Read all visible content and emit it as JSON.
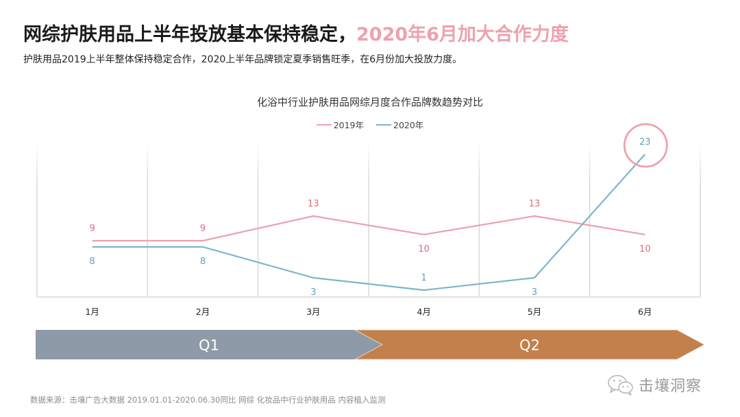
{
  "header": {
    "title_main": "网综护肤用品上半年投放基本保持稳定，",
    "title_accent": "2020年6月加大合作力度",
    "subtitle": "护肤用品2019上半年整体保持稳定合作，2020上半年品牌锁定夏季销售旺季，在6月份加大投放力度。"
  },
  "colors": {
    "series_2019": "#eda1ae",
    "series_2019_label": "#e06a7d",
    "series_2020": "#7ab6cc",
    "series_2020_label": "#5ea3bd",
    "highlight_circle": "#eda1ae",
    "q1": "#8e9aa8",
    "q2": "#c4804a",
    "accent": "#eda1ae"
  },
  "chart_data": {
    "type": "line",
    "title": "化浴中行业护肤用品网综月度合作品牌数趋势对比",
    "categories": [
      "1月",
      "2月",
      "3月",
      "4月",
      "5月",
      "6月"
    ],
    "series": [
      {
        "name": "2019年",
        "values": [
          9,
          9,
          13,
          10,
          13,
          10
        ],
        "label_position": [
          "above",
          "above",
          "above",
          "below",
          "above",
          "below"
        ]
      },
      {
        "name": "2020年",
        "values": [
          8,
          8,
          3,
          1,
          3,
          23
        ],
        "label_position": [
          "below",
          "below",
          "below",
          "above",
          "below",
          "above"
        ]
      }
    ],
    "highlight": {
      "series": "2020年",
      "category": "6月",
      "value": 23
    },
    "xlabel": "",
    "ylabel": "",
    "ylim": [
      0,
      25
    ],
    "grid": "vertical category separators",
    "legend": "top-center",
    "axis_labels_visible": false
  },
  "timeline": {
    "phases": [
      {
        "label": "Q1",
        "months": [
          "1月",
          "2月",
          "3月"
        ]
      },
      {
        "label": "Q2",
        "months": [
          "4月",
          "5月",
          "6月"
        ]
      }
    ]
  },
  "footer": {
    "source": "数据来源：击壤广告大数据 2019.01.01-2020.06.30同比 网综 化妆品中行业护肤用品 内容植入监测"
  },
  "brand": {
    "icon": "wechat-icon",
    "name": "击壤洞察"
  }
}
